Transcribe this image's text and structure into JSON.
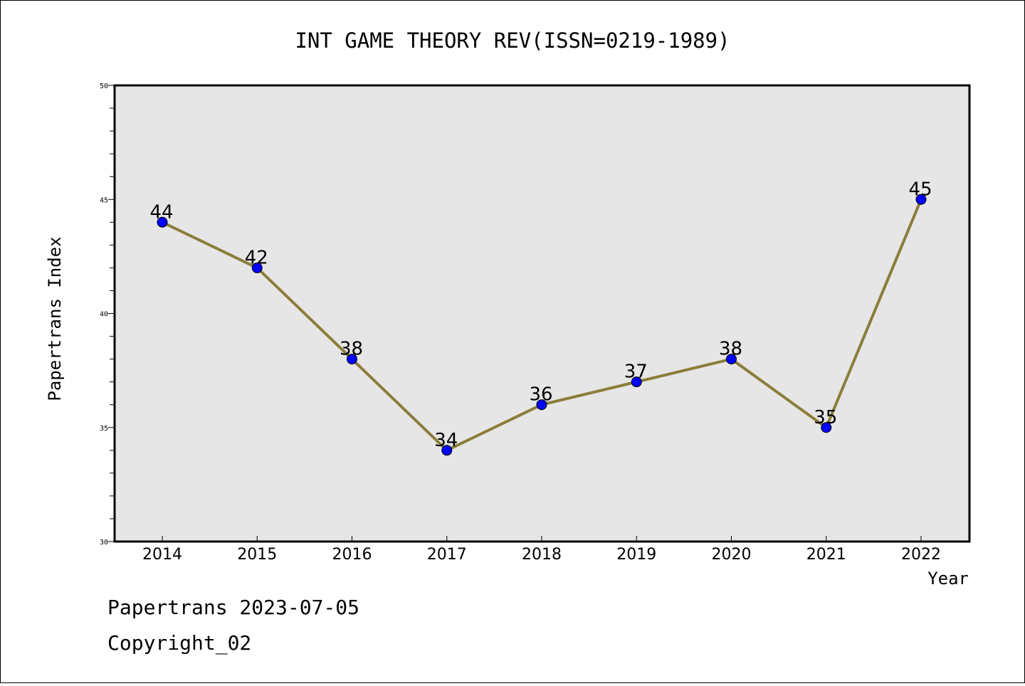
{
  "chart_data": {
    "type": "line",
    "title": "INT GAME THEORY REV(ISSN=0219-1989)",
    "xlabel": "Year",
    "ylabel": "Papertrans Index",
    "x": [
      "2014",
      "2015",
      "2016",
      "2017",
      "2018",
      "2019",
      "2020",
      "2021",
      "2022"
    ],
    "series": [
      {
        "values": [
          44,
          42,
          38,
          34,
          36,
          37,
          38,
          35,
          45
        ]
      }
    ],
    "data_labels": [
      "44",
      "42",
      "38",
      "34",
      "36",
      "37",
      "38",
      "35",
      "45"
    ],
    "ylim": [
      30,
      50
    ],
    "yticks": [
      "30",
      "35",
      "40",
      "45",
      "50"
    ],
    "grid": false,
    "legend": "none",
    "colors": {
      "line": "#8b7d3a",
      "marker": "#0000ff",
      "plot_bg": "#e6e6e6"
    }
  },
  "footer": {
    "line1": "Papertrans 2023-07-05",
    "line2": "Copyright_02"
  }
}
